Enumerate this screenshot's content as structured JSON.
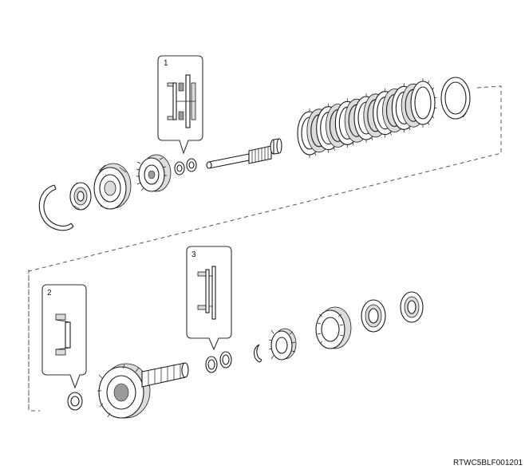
{
  "figure": {
    "code": "RTWC5BLF001201"
  },
  "callouts": [
    {
      "number": "1"
    },
    {
      "number": "2"
    },
    {
      "number": "3"
    }
  ],
  "colors": {
    "line": "#1a1a1a",
    "shade": "#dcdcdc",
    "dark_shade": "#9a9a9a",
    "background": "#ffffff"
  }
}
